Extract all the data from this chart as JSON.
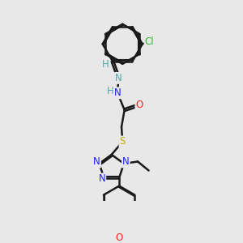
{
  "bg_color": "#e8e8e8",
  "bond_color": "#1a1a1a",
  "bond_width": 1.8,
  "atoms": {
    "Cl": {
      "color": "#3ab83a"
    },
    "N_imine": {
      "color": "#4fa8a8"
    },
    "N": {
      "color": "#2020ff"
    },
    "O": {
      "color": "#ff2020"
    },
    "S": {
      "color": "#c8aa00"
    },
    "H": {
      "color": "#4fa8a8"
    }
  },
  "figsize": [
    3.0,
    3.0
  ],
  "dpi": 100
}
